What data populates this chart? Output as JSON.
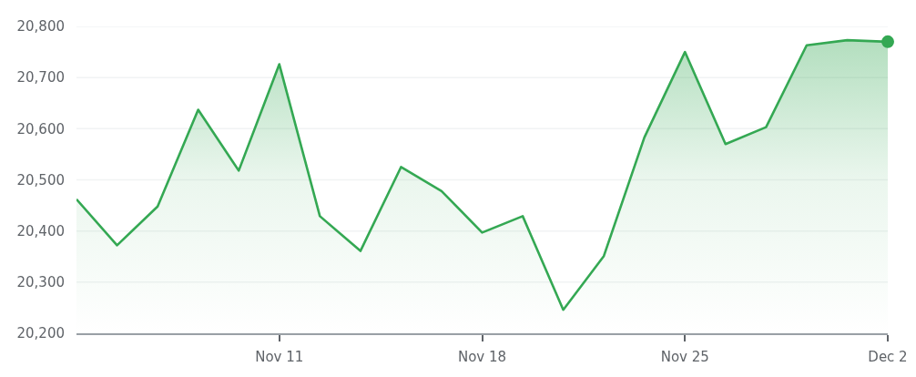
{
  "chart_data": {
    "type": "area",
    "categories": [
      null,
      null,
      null,
      null,
      null,
      "Nov 11",
      null,
      null,
      null,
      null,
      "Nov 18",
      null,
      null,
      null,
      null,
      "Nov 25",
      null,
      null,
      null,
      null,
      "Dec 2"
    ],
    "series": [
      {
        "color": "#34a853",
        "values": [
          20462,
          20372,
          20448,
          20637,
          20518,
          20726,
          20429,
          20361,
          20525,
          20478,
          20397,
          20429,
          20246,
          20351,
          20583,
          20750,
          20570,
          20603,
          20763,
          20773,
          20770
        ]
      },
      {
        "type": "scatter",
        "color": "#34a853",
        "x": [
          "Dec 2"
        ],
        "values": [
          20770
        ],
        "marker": "circle"
      }
    ],
    "ylim": [
      20200,
      20800
    ],
    "yticks": [
      {
        "value": 20200,
        "label": "20,200"
      },
      {
        "value": 20300,
        "label": "20,300"
      },
      {
        "value": 20400,
        "label": "20,400"
      },
      {
        "value": 20500,
        "label": "20,500"
      },
      {
        "value": 20600,
        "label": "20,600"
      },
      {
        "value": 20700,
        "label": "20,700"
      },
      {
        "value": 20800,
        "label": "20,800"
      }
    ],
    "grid": "y",
    "legend": false
  }
}
